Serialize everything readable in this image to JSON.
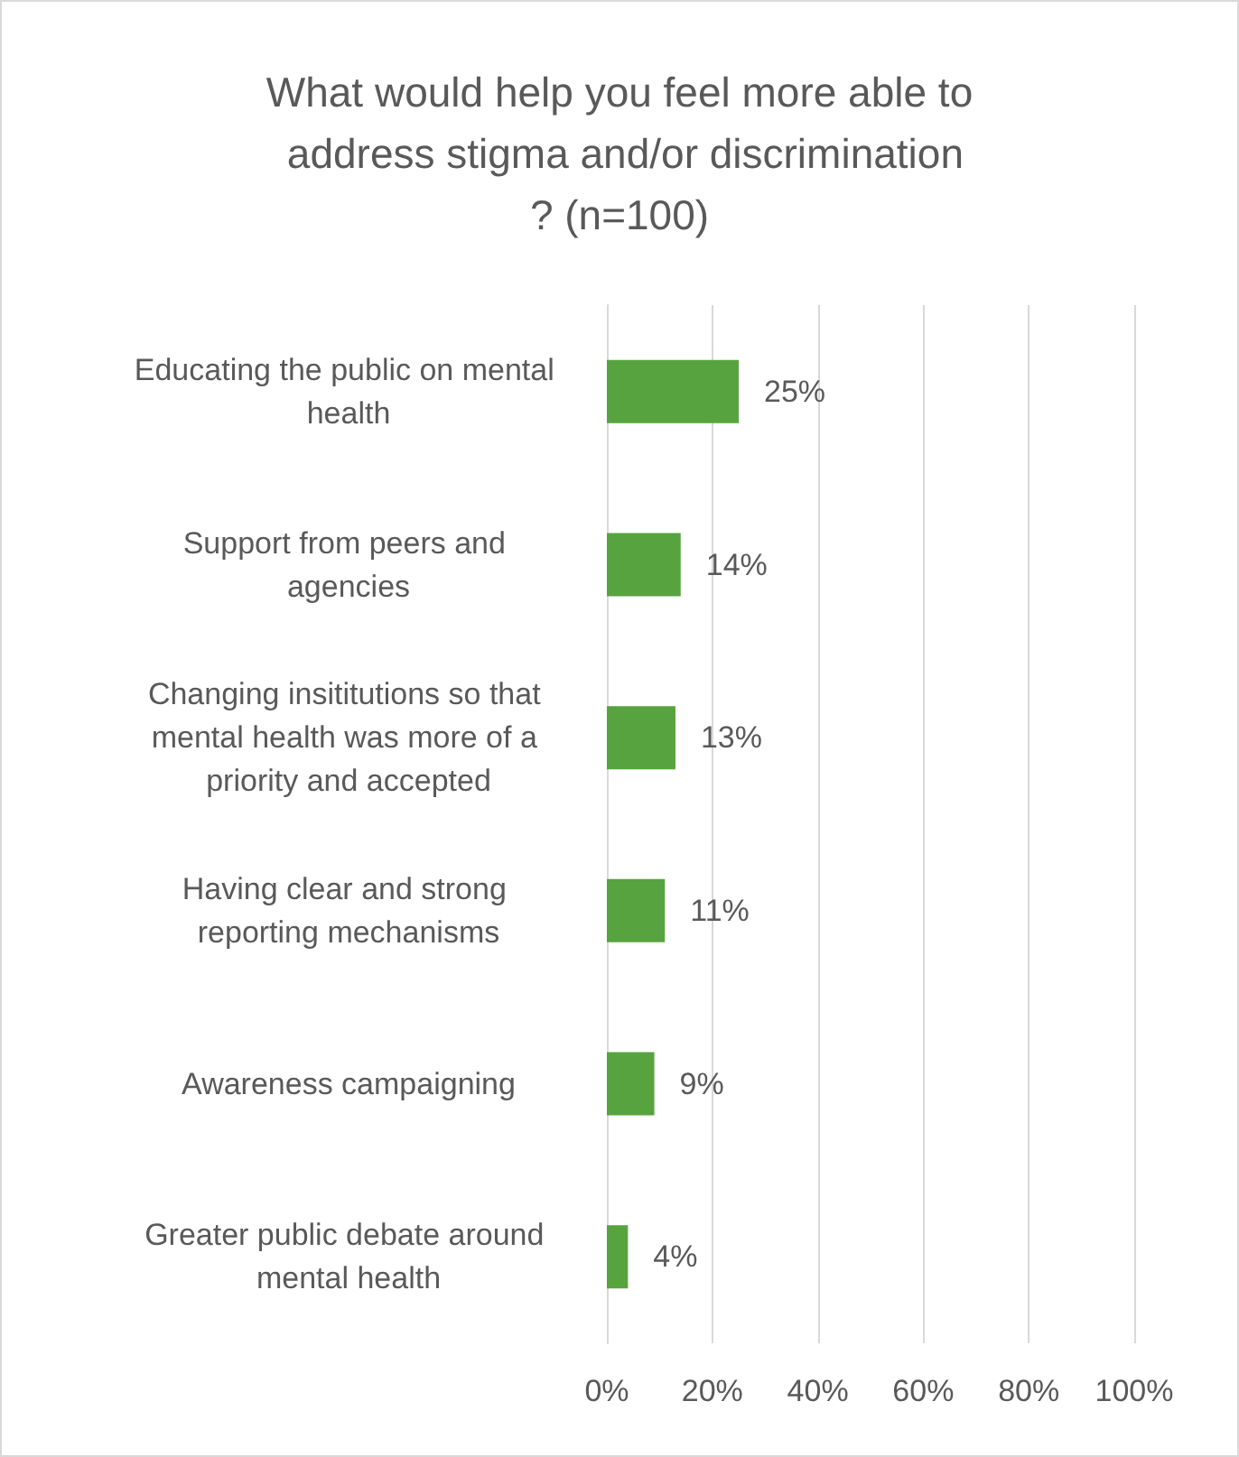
{
  "chart_data": {
    "type": "bar",
    "orientation": "horizontal",
    "title": "What would help you feel more able to address stigma and/or discrimination? (n=100)",
    "categories": [
      "Educating the public on mental health",
      "Support from peers and agencies",
      "Changing insititutions so that mental health was more of a priority and accepted",
      "Having clear and strong reporting mechanisms",
      "Awareness campaigning",
      "Greater public debate around mental health"
    ],
    "values": [
      25,
      14,
      13,
      11,
      9,
      4
    ],
    "value_labels": [
      "25%",
      "14%",
      "13%",
      "11%",
      "9%",
      "4%"
    ],
    "color": "#57a33f",
    "xlim": [
      0,
      100
    ],
    "xticks": [
      {
        "value": 0,
        "label": "0%"
      },
      {
        "value": 20,
        "label": "20%"
      },
      {
        "value": 40,
        "label": "40%"
      },
      {
        "value": 60,
        "label": "60%"
      },
      {
        "value": 80,
        "label": "80%"
      },
      {
        "value": 100,
        "label": "100%"
      }
    ],
    "grid": "x"
  }
}
